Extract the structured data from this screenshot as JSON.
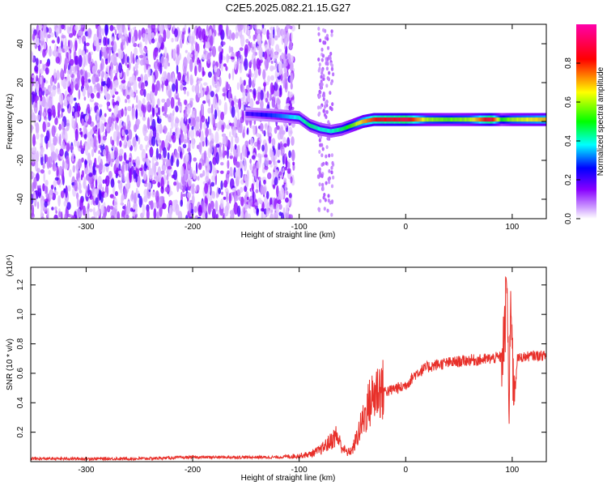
{
  "title": "C2E5.2025.082.21.15.G27",
  "chart_data": [
    {
      "type": "heatmap",
      "title": "C2E5.2025.082.21.15.G27",
      "xlabel": "Height of straight line (km)",
      "ylabel": "Frequency (Hz)",
      "xlim": [
        -352,
        132
      ],
      "ylim": [
        -50,
        50
      ],
      "xticks": [
        -300,
        -200,
        -100,
        0,
        100
      ],
      "yticks": [
        -40,
        -20,
        0,
        20,
        40
      ],
      "colorbar": {
        "label": "Normalized spectral amplitude",
        "range": [
          0,
          1
        ],
        "ticks": [
          0.0,
          0.2,
          0.4,
          0.6,
          0.8
        ],
        "colormap": [
          "#ffffff",
          "#8800ff",
          "#0000ff",
          "#00ffff",
          "#00ff00",
          "#ffff00",
          "#ff0000",
          "#ff00aa"
        ]
      },
      "ridge": {
        "x": [
          -150,
          -120,
          -100,
          -90,
          -80,
          -70,
          -60,
          -50,
          -40,
          -30,
          -20,
          -10,
          0,
          20,
          40,
          60,
          80,
          90,
          100,
          132
        ],
        "freq": [
          4,
          3,
          2,
          -2,
          -4,
          -5,
          -4,
          -2,
          0,
          1,
          1,
          1,
          1,
          1,
          1,
          1,
          1,
          1,
          1,
          1
        ],
        "amplitude": [
          0.2,
          0.3,
          0.4,
          0.45,
          0.4,
          0.4,
          0.45,
          0.55,
          0.7,
          0.8,
          0.85,
          0.85,
          0.9,
          0.6,
          0.55,
          0.6,
          0.9,
          0.5,
          0.6,
          0.7
        ]
      },
      "noise_region": {
        "x_from": -352,
        "x_to": -105,
        "level": 0.15
      }
    },
    {
      "type": "line",
      "xlabel": "Height of straight line (km)",
      "ylabel": "SNR (10 * v/v)",
      "y_multiplier": "(x10⁴)",
      "xlim": [
        -352,
        132
      ],
      "ylim": [
        0,
        1.32
      ],
      "xticks": [
        -300,
        -200,
        -100,
        0,
        100
      ],
      "yticks": [
        0.2,
        0.4,
        0.6,
        0.8,
        1.0,
        1.2
      ],
      "line_color": "#e8302a",
      "series": [
        {
          "x": [
            -352,
            -300,
            -250,
            -200,
            -150,
            -120,
            -100,
            -90,
            -80,
            -70,
            -65,
            -60,
            -55,
            -50,
            -45,
            -40,
            -35,
            -30,
            -25,
            -20,
            -15,
            -10,
            -5,
            0,
            5,
            10,
            20,
            30,
            40,
            50,
            60,
            70,
            80,
            90,
            93,
            95,
            97,
            99,
            101,
            105,
            110,
            120,
            132
          ],
          "y": [
            0.02,
            0.02,
            0.02,
            0.03,
            0.03,
            0.03,
            0.04,
            0.05,
            0.08,
            0.14,
            0.18,
            0.1,
            0.06,
            0.08,
            0.18,
            0.28,
            0.38,
            0.45,
            0.5,
            0.48,
            0.48,
            0.5,
            0.5,
            0.52,
            0.56,
            0.6,
            0.64,
            0.66,
            0.67,
            0.68,
            0.69,
            0.69,
            0.7,
            0.71,
            0.85,
            1.28,
            0.3,
            1.2,
            0.5,
            0.7,
            0.71,
            0.72,
            0.72
          ]
        }
      ]
    }
  ]
}
